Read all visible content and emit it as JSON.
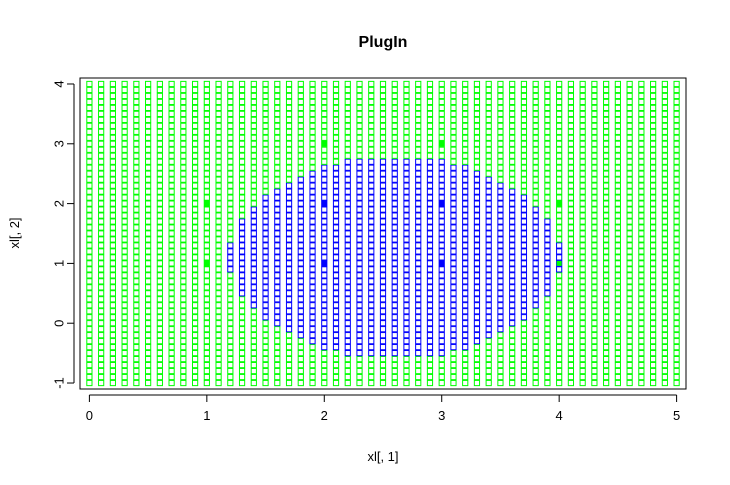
{
  "chart_data": {
    "type": "scatter",
    "title": "PlugIn",
    "xlabel": "xl[, 1]",
    "ylabel": "xl[, 2]",
    "xlim": [
      -0.08,
      5.08
    ],
    "ylim": [
      -1.1,
      4.1
    ],
    "x_ticks": [
      "0",
      "1",
      "2",
      "3",
      "4",
      "5"
    ],
    "y_ticks": [
      "-1",
      "0",
      "1",
      "2",
      "3",
      "4"
    ],
    "grid": {
      "x_range": [
        0,
        5
      ],
      "y_range": [
        -1,
        4
      ],
      "step": 0.1,
      "marker": "open-square",
      "class_colors": {
        "outer": "#00ff00",
        "inner": "#0000ff"
      },
      "inner_region": {
        "shape": "ellipse",
        "center": [
          2.6,
          1.1
        ],
        "semi_axis_x": 1.42,
        "semi_axis_y": 1.68
      }
    },
    "training_points": [
      {
        "x": 1,
        "y": 1,
        "class": "outer"
      },
      {
        "x": 1,
        "y": 2,
        "class": "outer"
      },
      {
        "x": 2,
        "y": 3,
        "class": "outer"
      },
      {
        "x": 3,
        "y": 3,
        "class": "outer"
      },
      {
        "x": 4,
        "y": 2,
        "class": "outer"
      },
      {
        "x": 4,
        "y": 1,
        "class": "outer"
      },
      {
        "x": 2,
        "y": 1,
        "class": "inner"
      },
      {
        "x": 2,
        "y": 2,
        "class": "inner"
      },
      {
        "x": 3,
        "y": 1,
        "class": "inner"
      },
      {
        "x": 3,
        "y": 2,
        "class": "inner"
      }
    ]
  }
}
